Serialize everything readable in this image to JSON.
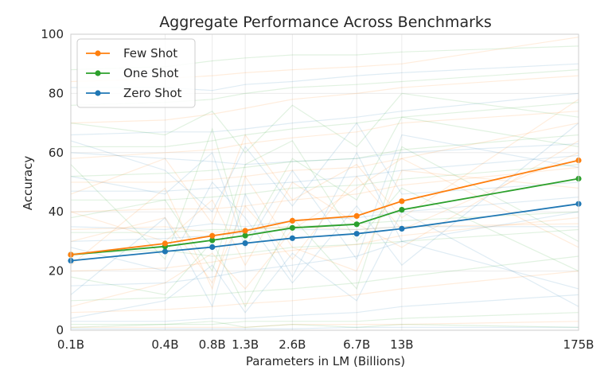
{
  "chart_data": {
    "type": "line",
    "title": "Aggregate Performance Across Benchmarks",
    "xlabel": "Parameters in LM (Billions)",
    "ylabel": "Accuracy",
    "x_scale": "log",
    "x": [
      0.1,
      0.4,
      0.8,
      1.3,
      2.6,
      6.7,
      13,
      175
    ],
    "x_tick_labels": [
      "0.1B",
      "0.4B",
      "0.8B",
      "1.3B",
      "2.6B",
      "6.7B",
      "13B",
      "175B"
    ],
    "ylim": [
      0,
      100
    ],
    "y_ticks": [
      0,
      20,
      40,
      60,
      80,
      100
    ],
    "grid": true,
    "legend_position": "top-left",
    "series": [
      {
        "name": "Few Shot",
        "color": "#ff7f0e",
        "values": [
          25.5,
          29.3,
          31.9,
          33.6,
          37.0,
          38.6,
          43.6,
          57.4
        ]
      },
      {
        "name": "One Shot",
        "color": "#2ca02c",
        "values": [
          25.5,
          28.3,
          30.4,
          32.0,
          34.6,
          35.8,
          40.7,
          51.2
        ]
      },
      {
        "name": "Zero Shot",
        "color": "#1f77b4",
        "values": [
          23.5,
          26.6,
          28.1,
          29.4,
          31.1,
          32.6,
          34.3,
          42.7
        ]
      }
    ],
    "background_series": [
      {
        "color": "#2ca02c",
        "values": [
          88,
          89,
          91,
          92,
          93,
          93,
          94,
          96
        ]
      },
      {
        "color": "#ff7f0e",
        "values": [
          84,
          85,
          86,
          87,
          88,
          89,
          90,
          99
        ]
      },
      {
        "color": "#1f77b4",
        "values": [
          82,
          82,
          81,
          83,
          84,
          86,
          87,
          90
        ]
      },
      {
        "color": "#2ca02c",
        "values": [
          76,
          77,
          78,
          80,
          82,
          83,
          84,
          88
        ]
      },
      {
        "color": "#ff7f0e",
        "values": [
          70,
          71,
          73,
          75,
          78,
          80,
          82,
          86
        ]
      },
      {
        "color": "#1f77b4",
        "values": [
          66,
          67,
          67,
          68,
          70,
          72,
          74,
          80
        ]
      },
      {
        "color": "#2ca02c",
        "values": [
          62,
          62,
          64,
          66,
          68,
          70,
          72,
          77
        ]
      },
      {
        "color": "#ff7f0e",
        "values": [
          58,
          60,
          61,
          63,
          65,
          67,
          70,
          74
        ]
      },
      {
        "color": "#1f77b4",
        "values": [
          60,
          58,
          57,
          56,
          57,
          58,
          60,
          63
        ]
      },
      {
        "color": "#2ca02c",
        "values": [
          52,
          53,
          54,
          55,
          57,
          58,
          61,
          66
        ]
      },
      {
        "color": "#ff7f0e",
        "values": [
          50,
          50,
          51,
          52,
          54,
          55,
          58,
          70
        ]
      },
      {
        "color": "#1f77b4",
        "values": [
          47,
          47,
          48,
          49,
          50,
          52,
          54,
          59
        ]
      },
      {
        "color": "#2ca02c",
        "values": [
          44,
          44,
          45,
          46,
          48,
          49,
          51,
          56
        ]
      },
      {
        "color": "#ff7f0e",
        "values": [
          40,
          41,
          41,
          42,
          44,
          46,
          49,
          55
        ]
      },
      {
        "color": "#1f77b4",
        "values": [
          35,
          34,
          36,
          35,
          37,
          38,
          40,
          45
        ]
      },
      {
        "color": "#2ca02c",
        "values": [
          33,
          33,
          34,
          34,
          35,
          36,
          37,
          40
        ]
      },
      {
        "color": "#ff7f0e",
        "values": [
          34,
          35,
          33,
          34,
          35,
          34,
          35,
          36
        ]
      },
      {
        "color": "#1f77b4",
        "values": [
          30,
          31,
          32,
          33,
          34,
          34,
          35,
          35
        ]
      },
      {
        "color": "#2ca02c",
        "values": [
          26,
          27,
          25,
          26,
          28,
          29,
          30,
          34
        ]
      },
      {
        "color": "#ff7f0e",
        "values": [
          20,
          21,
          23,
          25,
          27,
          29,
          32,
          38
        ]
      },
      {
        "color": "#1f77b4",
        "values": [
          15,
          16,
          18,
          20,
          22,
          25,
          30,
          40
        ]
      },
      {
        "color": "#2ca02c",
        "values": [
          10,
          11,
          12,
          13,
          14,
          16,
          18,
          25
        ]
      },
      {
        "color": "#ff7f0e",
        "values": [
          6,
          7,
          8,
          9,
          10,
          12,
          14,
          20
        ]
      },
      {
        "color": "#1f77b4",
        "values": [
          3,
          3,
          4,
          4,
          5,
          6,
          8,
          12
        ]
      },
      {
        "color": "#2ca02c",
        "values": [
          2,
          2,
          2,
          3,
          3,
          3,
          4,
          6
        ]
      },
      {
        "color": "#ff7f0e",
        "values": [
          1,
          1,
          1,
          1,
          2,
          2,
          2,
          3
        ]
      },
      {
        "color": "#1f77b4",
        "values": [
          0.5,
          0.5,
          0.5,
          0.5,
          0.5,
          1,
          1,
          1
        ]
      },
      {
        "color": "#2ca02c",
        "values": [
          1,
          2,
          3,
          1,
          2,
          1,
          2,
          1
        ]
      },
      {
        "color": "#ff7f0e",
        "values": [
          40,
          30,
          44,
          22,
          50,
          36,
          28,
          64
        ]
      },
      {
        "color": "#1f77b4",
        "values": [
          12,
          38,
          8,
          46,
          18,
          60,
          30,
          14
        ]
      },
      {
        "color": "#2ca02c",
        "values": [
          56,
          24,
          68,
          30,
          58,
          44,
          72,
          62
        ]
      },
      {
        "color": "#ff7f0e",
        "values": [
          22,
          48,
          14,
          52,
          28,
          20,
          54,
          48
        ]
      },
      {
        "color": "#1f77b4",
        "values": [
          64,
          54,
          40,
          62,
          42,
          70,
          46,
          50
        ]
      },
      {
        "color": "#2ca02c",
        "values": [
          18,
          12,
          30,
          8,
          38,
          14,
          62,
          30
        ]
      },
      {
        "color": "#ff7f0e",
        "values": [
          46,
          58,
          36,
          66,
          44,
          56,
          38,
          78
        ]
      },
      {
        "color": "#1f77b4",
        "values": [
          28,
          20,
          50,
          38,
          16,
          42,
          22,
          70
        ]
      },
      {
        "color": "#2ca02c",
        "values": [
          38,
          44,
          20,
          56,
          64,
          30,
          48,
          20
        ]
      },
      {
        "color": "#ff7f0e",
        "values": [
          8,
          16,
          26,
          14,
          34,
          48,
          58,
          28
        ]
      },
      {
        "color": "#1f77b4",
        "values": [
          52,
          46,
          60,
          28,
          54,
          24,
          66,
          55
        ]
      },
      {
        "color": "#2ca02c",
        "values": [
          70,
          66,
          74,
          60,
          76,
          62,
          80,
          72
        ]
      },
      {
        "color": "#ff7f0e",
        "values": [
          30,
          38,
          16,
          42,
          24,
          52,
          34,
          60
        ]
      },
      {
        "color": "#1f77b4",
        "values": [
          4,
          10,
          22,
          6,
          26,
          10,
          40,
          8
        ]
      }
    ]
  }
}
